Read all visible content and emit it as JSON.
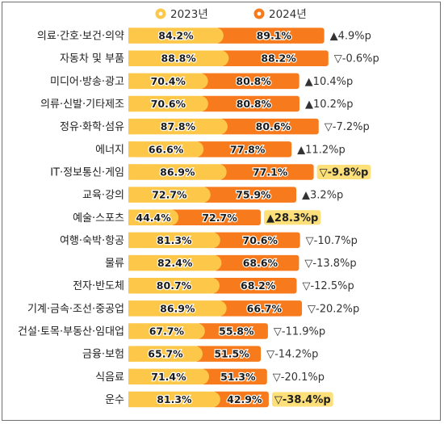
{
  "chart_data": {
    "type": "bar",
    "orientation": "horizontal",
    "title": "",
    "xlabel": "",
    "ylabel": "",
    "xlim": [
      0,
      100
    ],
    "legend_position": "top",
    "grid": false,
    "legend": [
      {
        "name": "2023년",
        "color": "#fdc84a"
      },
      {
        "name": "2024년",
        "color": "#f77b1d"
      }
    ],
    "categories": [
      "의료·간호·보건·의약",
      "자동차 및 부품",
      "미디어·방송·광고",
      "의류·신발·기타제조",
      "정유·화학·섬유",
      "에너지",
      "IT·정보통신·게임",
      "교육·강의",
      "예술·스포츠",
      "여행·숙박·항공",
      "물류",
      "전자·반도체",
      "기계·금속·조선·중공업",
      "건설·토목·부동산·임대업",
      "금융·보험",
      "식음료",
      "운수"
    ],
    "series": [
      {
        "name": "2023년",
        "values": [
          84.2,
          88.8,
          70.4,
          70.6,
          87.8,
          66.6,
          86.9,
          72.7,
          44.4,
          81.3,
          82.4,
          80.7,
          86.9,
          67.7,
          65.7,
          71.4,
          81.3
        ]
      },
      {
        "name": "2024년",
        "values": [
          89.1,
          88.2,
          80.8,
          80.8,
          80.6,
          77.8,
          77.1,
          75.9,
          72.7,
          70.6,
          68.6,
          68.2,
          66.7,
          55.8,
          51.5,
          51.3,
          42.9
        ]
      }
    ],
    "value_labels_2023": [
      "84.2%",
      "88.8%",
      "70.4%",
      "70.6%",
      "87.8%",
      "66.6%",
      "86.9%",
      "72.7%",
      "44.4%",
      "81.3%",
      "82.4%",
      "80.7%",
      "86.9%",
      "67.7%",
      "65.7%",
      "71.4%",
      "81.3%"
    ],
    "value_labels_2024": [
      "89.1%",
      "88.2%",
      "80.8%",
      "80.8%",
      "80.6%",
      "77.8%",
      "77.1%",
      "75.9%",
      "72.7%",
      "70.6%",
      "68.6%",
      "68.2%",
      "66.7%",
      "55.8%",
      "51.5%",
      "51.3%",
      "42.9%"
    ],
    "changes": [
      "▲4.9%p",
      "▽-0.6%p",
      "▲10.4%p",
      "▲10.2%p",
      "▽-7.2%p",
      "▲11.2%p",
      "▽-9.8%p",
      "▲3.2%p",
      "▲28.3%p",
      "▽-10.7%p",
      "▽-13.8%p",
      "▽-12.5%p",
      "▽-20.2%p",
      "▽-11.9%p",
      "▽-14.2%p",
      "▽-20.1%p",
      "▽-38.4%p"
    ],
    "highlighted_changes": [
      6,
      8,
      16
    ]
  },
  "colors": {
    "bar_2023": "#fdc84a",
    "bar_2024": "#f77b1d",
    "highlight": "#fde07a"
  }
}
